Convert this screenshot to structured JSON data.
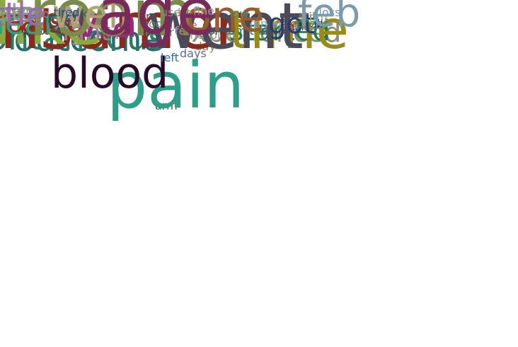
{
  "words": [
    {
      "text": "arm",
      "color": "#4a5a4a"
    },
    {
      "text": "pain",
      "color": "#2e9e8a"
    },
    {
      "text": "blood",
      "color": "#2a0a2a"
    },
    {
      "text": "left",
      "color": "#2f6fa0"
    },
    {
      "text": "day",
      "color": "#8a8a4a"
    },
    {
      "text": "days",
      "color": "#5a6aa0"
    },
    {
      "text": "headache",
      "color": "#1e6e5a"
    },
    {
      "text": "outcome",
      "color": "#1e6e6e"
    },
    {
      "text": "medications",
      "color": "#3a2a5a"
    },
    {
      "text": "symptoms",
      "color": "#9a2a9a"
    },
    {
      "text": "spontaneous",
      "color": "#2a7a6a"
    },
    {
      "text": "experienced",
      "color": "#8a8a7a"
    },
    {
      "text": "hospital",
      "color": "#a89a8a"
    },
    {
      "text": "concomitant",
      "color": "#1e6e5a"
    },
    {
      "text": "consumer",
      "color": "#8a2a1a"
    },
    {
      "text": "single",
      "color": "#9a6aa0"
    },
    {
      "text": "hours",
      "color": "#9a9aa0"
    },
    {
      "text": "fever",
      "color": "#4a9a7a"
    },
    {
      "text": "right",
      "color": "#a07aa0"
    },
    {
      "text": "event",
      "color": "#2e7a3a"
    },
    {
      "text": "prior",
      "color": "#5a2a1a"
    },
    {
      "text": "site",
      "color": "#9a5a6a"
    },
    {
      "text": "second",
      "color": "#3a5a6a"
    },
    {
      "text": "started",
      "color": "#1e7a4a"
    },
    {
      "text": "date",
      "color": "#3a2a6a"
    },
    {
      "text": "time",
      "color": "#9a8a1a"
    },
    {
      "text": "female",
      "color": "#8aa0c0"
    },
    {
      "text": "chills",
      "color": "#6a2a9a"
    },
    {
      "text": "lot",
      "color": "#6a1a4a"
    },
    {
      "text": "back",
      "color": "#8a8aa0"
    },
    {
      "text": "route",
      "color": "#9a5a2a"
    },
    {
      "text": "like",
      "color": "#8aaa3a"
    },
    {
      "text": "feeling",
      "color": "#6aa02a"
    },
    {
      "text": "went",
      "color": "#4a4a5a"
    },
    {
      "text": "felt",
      "color": "#9a9aa0"
    },
    {
      "text": "took",
      "color": "#3a3a5a"
    },
    {
      "text": "body",
      "color": "#6a8a7a"
    },
    {
      "text": "rash",
      "color": "#9a2a1a"
    },
    {
      "text": "also",
      "color": "#9a2a1a"
    },
    {
      "text": "heart",
      "color": "#2e9e8a"
    },
    {
      "text": "shot",
      "color": "#a07a9a"
    },
    {
      "text": "got",
      "color": "#2a3a6a"
    },
    {
      "text": "pfizer",
      "color": "#2e8a5a"
    },
    {
      "text": "said",
      "color": "#8a8aa0"
    },
    {
      "text": "doctor",
      "color": "#3a2a3a"
    },
    {
      "text": "ill",
      "color": "#2a2a5a"
    },
    {
      "text": "still",
      "color": "#7a7a7a"
    },
    {
      "text": "via",
      "color": "#9a2a7a"
    },
    {
      "text": "next",
      "color": "#4a5a3a"
    },
    {
      "text": "get",
      "color": "#4a4a4a"
    },
    {
      "text": "test",
      "color": "#8a1a1a"
    },
    {
      "text": "pm",
      "color": "#8aaa7a"
    },
    {
      "text": "er",
      "color": "#4a4a4a"
    },
    {
      "text": "due",
      "color": "#8a1a1a"
    },
    {
      "text": "one",
      "color": "#9a5a2a"
    },
    {
      "text": "low",
      "color": "#4a8a6a"
    },
    {
      "text": "room",
      "color": "#7a8a4a"
    },
    {
      "text": "feel",
      "color": "#8a8a5a"
    },
    {
      "text": "nurse",
      "color": "#7a9ab0"
    },
    {
      "text": "eye",
      "color": "#2a6a8a"
    },
    {
      "text": "bp",
      "color": "#8aaa7a"
    },
    {
      "text": "jan",
      "color": "#9a2a4a"
    },
    {
      "text": "go",
      "color": "#8a8a8a"
    },
    {
      "text": "came",
      "color": "#7a8a8a"
    },
    {
      "text": "rate",
      "color": "#8a9aa0"
    },
    {
      "text": "legs",
      "color": "#4a8a4a"
    },
    {
      "text": "neck",
      "color": "#3a5a6a"
    },
    {
      "text": "well",
      "color": "#b0a07a"
    },
    {
      "text": "age",
      "color": "#7a2a5a"
    },
    {
      "text": "fine",
      "color": "#9a9aa0"
    },
    {
      "text": "use",
      "color": "#8a8a7a"
    },
    {
      "text": "little",
      "color": "#9a6ab0"
    },
    {
      "text": "tired",
      "color": "#2a4a8a"
    },
    {
      "text": "ago",
      "color": "#4a8aa0"
    },
    {
      "text": "feb",
      "color": "#7a9ab0"
    },
    {
      "text": "per",
      "color": "#9a9a3a"
    },
    {
      "text": "loss",
      "color": "#7a9ab0"
    },
    {
      "text": "work",
      "color": "#7a1a6a"
    }
  ]
}
